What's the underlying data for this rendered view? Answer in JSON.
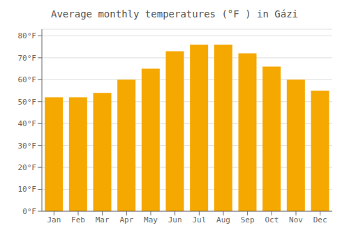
{
  "chart_data": {
    "type": "bar",
    "title": "Average monthly temperatures (°F ) in Gázi",
    "categories": [
      "Jan",
      "Feb",
      "Mar",
      "Apr",
      "May",
      "Jun",
      "Jul",
      "Aug",
      "Sep",
      "Oct",
      "Nov",
      "Dec"
    ],
    "values": [
      52,
      52,
      54,
      60,
      65,
      73,
      76,
      76,
      72,
      66,
      60,
      55
    ],
    "color": "#F5A800",
    "ylim": [
      0,
      83
    ],
    "yticks": [
      {
        "value": 0,
        "label": "0°F"
      },
      {
        "value": 10,
        "label": "10°F"
      },
      {
        "value": 20,
        "label": "20°F"
      },
      {
        "value": 30,
        "label": "30°F"
      },
      {
        "value": 40,
        "label": "40°F"
      },
      {
        "value": 50,
        "label": "50°F"
      },
      {
        "value": 60,
        "label": "60°F"
      },
      {
        "value": 70,
        "label": "70°F"
      },
      {
        "value": 80,
        "label": "80°F"
      }
    ],
    "grid": true
  }
}
